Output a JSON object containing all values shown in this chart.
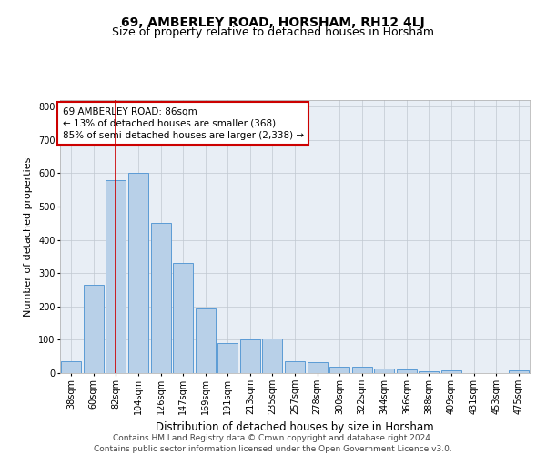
{
  "title": "69, AMBERLEY ROAD, HORSHAM, RH12 4LJ",
  "subtitle": "Size of property relative to detached houses in Horsham",
  "xlabel": "Distribution of detached houses by size in Horsham",
  "ylabel": "Number of detached properties",
  "categories": [
    "38sqm",
    "60sqm",
    "82sqm",
    "104sqm",
    "126sqm",
    "147sqm",
    "169sqm",
    "191sqm",
    "213sqm",
    "235sqm",
    "257sqm",
    "278sqm",
    "300sqm",
    "322sqm",
    "344sqm",
    "366sqm",
    "388sqm",
    "409sqm",
    "431sqm",
    "453sqm",
    "475sqm"
  ],
  "values": [
    35,
    265,
    580,
    600,
    450,
    330,
    195,
    90,
    100,
    105,
    35,
    32,
    18,
    18,
    13,
    10,
    5,
    8,
    0,
    0,
    8
  ],
  "bar_color": "#b8d0e8",
  "bar_edge_color": "#5b9bd5",
  "vline_x": 2,
  "vline_color": "#cc0000",
  "annotation_text": "69 AMBERLEY ROAD: 86sqm\n← 13% of detached houses are smaller (368)\n85% of semi-detached houses are larger (2,338) →",
  "annotation_box_color": "#ffffff",
  "annotation_box_edge": "#cc0000",
  "ylim": [
    0,
    820
  ],
  "yticks": [
    0,
    100,
    200,
    300,
    400,
    500,
    600,
    700,
    800
  ],
  "footer_line1": "Contains HM Land Registry data © Crown copyright and database right 2024.",
  "footer_line2": "Contains public sector information licensed under the Open Government Licence v3.0.",
  "background_color": "#ffffff",
  "plot_bg_color": "#e8eef5",
  "grid_color": "#c0c8d0",
  "title_fontsize": 10,
  "subtitle_fontsize": 9,
  "xlabel_fontsize": 8.5,
  "ylabel_fontsize": 8,
  "tick_fontsize": 7,
  "annotation_fontsize": 7.5,
  "footer_fontsize": 6.5
}
